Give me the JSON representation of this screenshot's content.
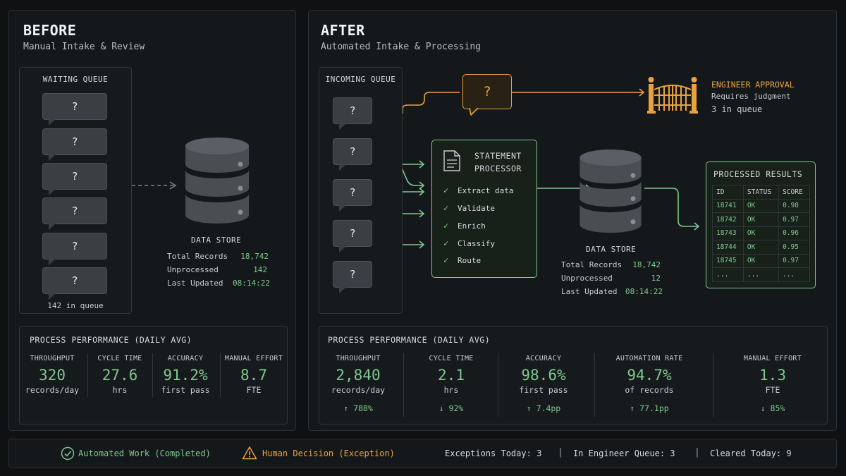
{
  "before": {
    "title": "BEFORE",
    "subtitle": "Manual Intake & Review",
    "queue": {
      "title": "WAITING QUEUE",
      "items": [
        "?",
        "?",
        "?",
        "?",
        "?",
        "?"
      ],
      "footer": "142 in queue"
    },
    "data_store": {
      "title": "DATA STORE",
      "rows": [
        {
          "key": "Total Records",
          "value": "18,742"
        },
        {
          "key": "Unprocessed",
          "value": "142"
        },
        {
          "key": "Last Updated",
          "value": "08:14:22"
        }
      ]
    },
    "performance": {
      "title": "PROCESS PERFORMANCE (DAILY AVG)",
      "metrics": [
        {
          "label": "THROUGHPUT",
          "value": "320",
          "unit": "records/day"
        },
        {
          "label": "CYCLE TIME",
          "value": "27.6",
          "unit": "hrs"
        },
        {
          "label": "ACCURACY",
          "value": "91.2%",
          "unit": "first pass"
        },
        {
          "label": "MANUAL EFFORT",
          "value": "8.7",
          "unit": "FTE"
        }
      ]
    }
  },
  "after": {
    "title": "AFTER",
    "subtitle": "Automated Intake & Processing",
    "queue": {
      "title": "INCOMING QUEUE",
      "items": [
        "?",
        "?",
        "?",
        "?",
        "?"
      ]
    },
    "exception_bubble": "?",
    "engineer": {
      "title": "ENGINEER APPROVAL",
      "line1": "Requires judgment",
      "line2": "3 in queue"
    },
    "processor": {
      "title_line1": "STATEMENT",
      "title_line2": "PROCESSOR",
      "steps": [
        "Extract data",
        "Validate",
        "Enrich",
        "Classify",
        "Route"
      ]
    },
    "data_store": {
      "title": "DATA STORE",
      "rows": [
        {
          "key": "Total Records",
          "value": "18,742"
        },
        {
          "key": "Unprocessed",
          "value": "12"
        },
        {
          "key": "Last Updated",
          "value": "08:14:22"
        }
      ]
    },
    "results": {
      "title": "PROCESSED RESULTS",
      "headers": [
        "ID",
        "STATUS",
        "SCORE"
      ],
      "rows": [
        [
          "18741",
          "OK",
          "0.98"
        ],
        [
          "18742",
          "OK",
          "0.97"
        ],
        [
          "18743",
          "OK",
          "0.96"
        ],
        [
          "18744",
          "OK",
          "0.95"
        ],
        [
          "18745",
          "OK",
          "0.97"
        ],
        [
          "...",
          "...",
          "..."
        ]
      ]
    },
    "performance": {
      "title": "PROCESS PERFORMANCE (DAILY AVG)",
      "metrics": [
        {
          "label": "THROUGHPUT",
          "value": "2,840",
          "unit": "records/day",
          "delta": "↑ 788%"
        },
        {
          "label": "CYCLE TIME",
          "value": "2.1",
          "unit": "hrs",
          "delta": "↓ 92%"
        },
        {
          "label": "ACCURACY",
          "value": "98.6%",
          "unit": "first pass",
          "delta": "↑ 7.4pp"
        },
        {
          "label": "AUTOMATION RATE",
          "value": "94.7%",
          "unit": "of records",
          "delta": "↑ 77.1pp"
        },
        {
          "label": "MANUAL EFFORT",
          "value": "1.3",
          "unit": "FTE",
          "delta": "↓ 85%"
        }
      ]
    }
  },
  "legend": {
    "automated": "Automated Work (Completed)",
    "human": "Human Decision (Exception)",
    "stats": [
      {
        "label": "Exceptions Today:",
        "value": "3"
      },
      {
        "label": "In Engineer Queue:",
        "value": "3"
      },
      {
        "label": "Cleared Today:",
        "value": "9"
      }
    ]
  },
  "colors": {
    "automated": "#7fc98f",
    "exception": "#e9a33c",
    "panel": "#15181b",
    "background": "#0f1113"
  }
}
